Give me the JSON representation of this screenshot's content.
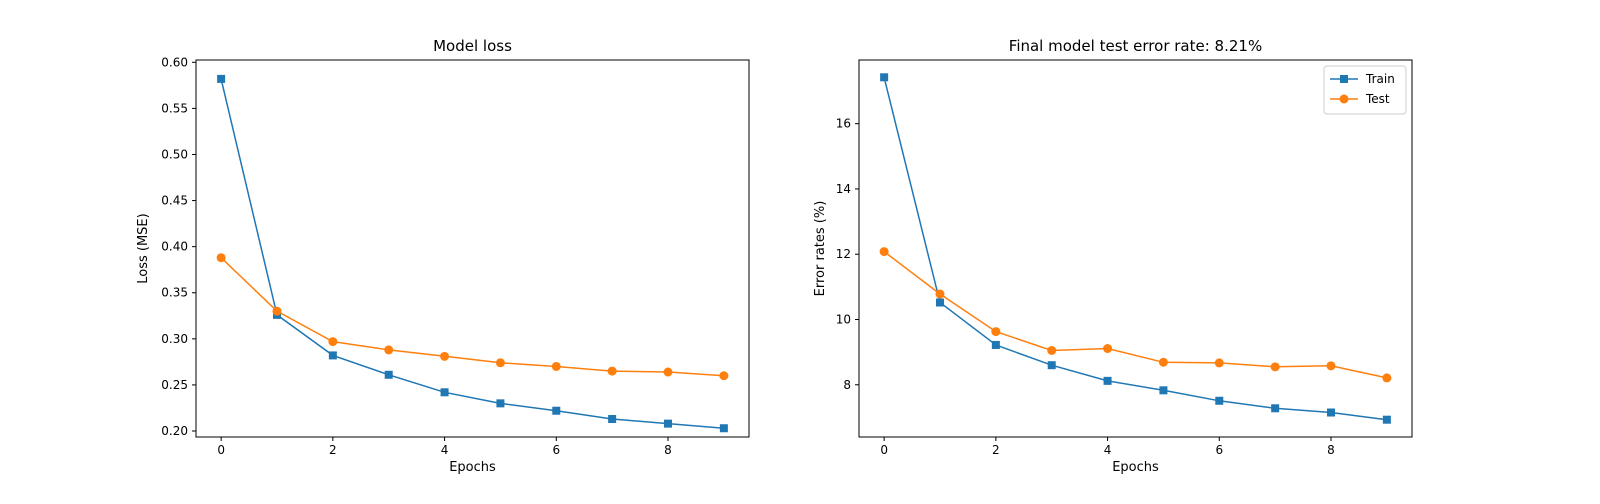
{
  "chart_data": [
    {
      "type": "line",
      "title": "Model loss",
      "xlabel": "Epochs",
      "ylabel": "Loss (MSE)",
      "x": [
        0,
        1,
        2,
        3,
        4,
        5,
        6,
        7,
        8,
        9
      ],
      "xlim": [
        -0.45,
        9.45
      ],
      "ylim": [
        0.1935,
        0.6025
      ],
      "xticks": [
        0,
        2,
        4,
        6,
        8
      ],
      "yticks": [
        0.2,
        0.25,
        0.3,
        0.35,
        0.4,
        0.45,
        0.5,
        0.55,
        0.6
      ],
      "ytick_labels": [
        "0.20",
        "0.25",
        "0.30",
        "0.35",
        "0.40",
        "0.45",
        "0.50",
        "0.55",
        "0.60"
      ],
      "grid": false,
      "series": [
        {
          "name": "Train",
          "color": "#1f77b4",
          "marker": "square",
          "values": [
            0.582,
            0.326,
            0.282,
            0.261,
            0.242,
            0.23,
            0.222,
            0.213,
            0.208,
            0.203
          ]
        },
        {
          "name": "Test",
          "color": "#ff7f0e",
          "marker": "circle",
          "values": [
            0.388,
            0.33,
            0.297,
            0.288,
            0.281,
            0.274,
            0.27,
            0.265,
            0.264,
            0.26
          ]
        }
      ]
    },
    {
      "type": "line",
      "title": "Final model test error rate: 8.21%",
      "xlabel": "Epochs",
      "ylabel": "Error rates (%)",
      "x": [
        0,
        1,
        2,
        3,
        4,
        5,
        6,
        7,
        8,
        9
      ],
      "xlim": [
        -0.45,
        9.45
      ],
      "ylim": [
        6.4,
        17.95
      ],
      "xticks": [
        0,
        2,
        4,
        6,
        8
      ],
      "yticks": [
        8,
        10,
        12,
        14,
        16
      ],
      "ytick_labels": [
        "8",
        "10",
        "12",
        "14",
        "16"
      ],
      "grid": false,
      "legend": {
        "position": "top-right",
        "entries": [
          "Train",
          "Test"
        ]
      },
      "series": [
        {
          "name": "Train",
          "color": "#1f77b4",
          "marker": "square",
          "values": [
            17.42,
            10.52,
            9.22,
            8.6,
            8.12,
            7.83,
            7.51,
            7.28,
            7.15,
            6.93
          ]
        },
        {
          "name": "Test",
          "color": "#ff7f0e",
          "marker": "circle",
          "values": [
            12.08,
            10.78,
            9.63,
            9.05,
            9.11,
            8.69,
            8.67,
            8.55,
            8.58,
            8.21
          ]
        }
      ]
    }
  ]
}
